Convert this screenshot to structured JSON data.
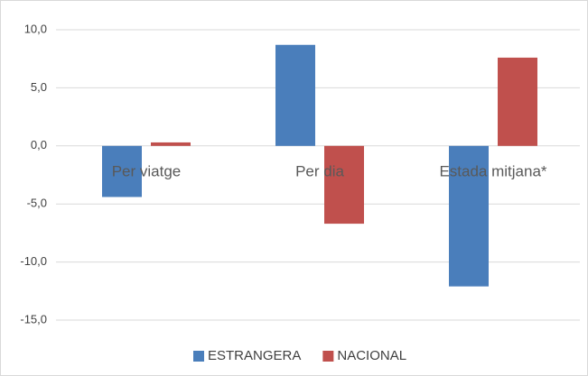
{
  "chart_data": {
    "type": "bar",
    "categories": [
      "Per viatge",
      "Per dia",
      "Estada mitjana*"
    ],
    "series": [
      {
        "name": "ESTRANGERA",
        "color": "#4a7ebb",
        "values": [
          -4.4,
          8.7,
          -12.1
        ]
      },
      {
        "name": "NACIONAL",
        "color": "#c0504d",
        "values": [
          0.3,
          -6.7,
          7.6
        ]
      }
    ],
    "ylim": [
      -15,
      10
    ],
    "yticks": [
      {
        "value": -15,
        "label": "-15,0"
      },
      {
        "value": -10,
        "label": "-10,0"
      },
      {
        "value": -5,
        "label": "-5,0"
      },
      {
        "value": 0,
        "label": "0,0"
      },
      {
        "value": 5,
        "label": "5,0"
      },
      {
        "value": 10,
        "label": "10,0"
      }
    ],
    "grid": true,
    "legend": "bottom"
  }
}
